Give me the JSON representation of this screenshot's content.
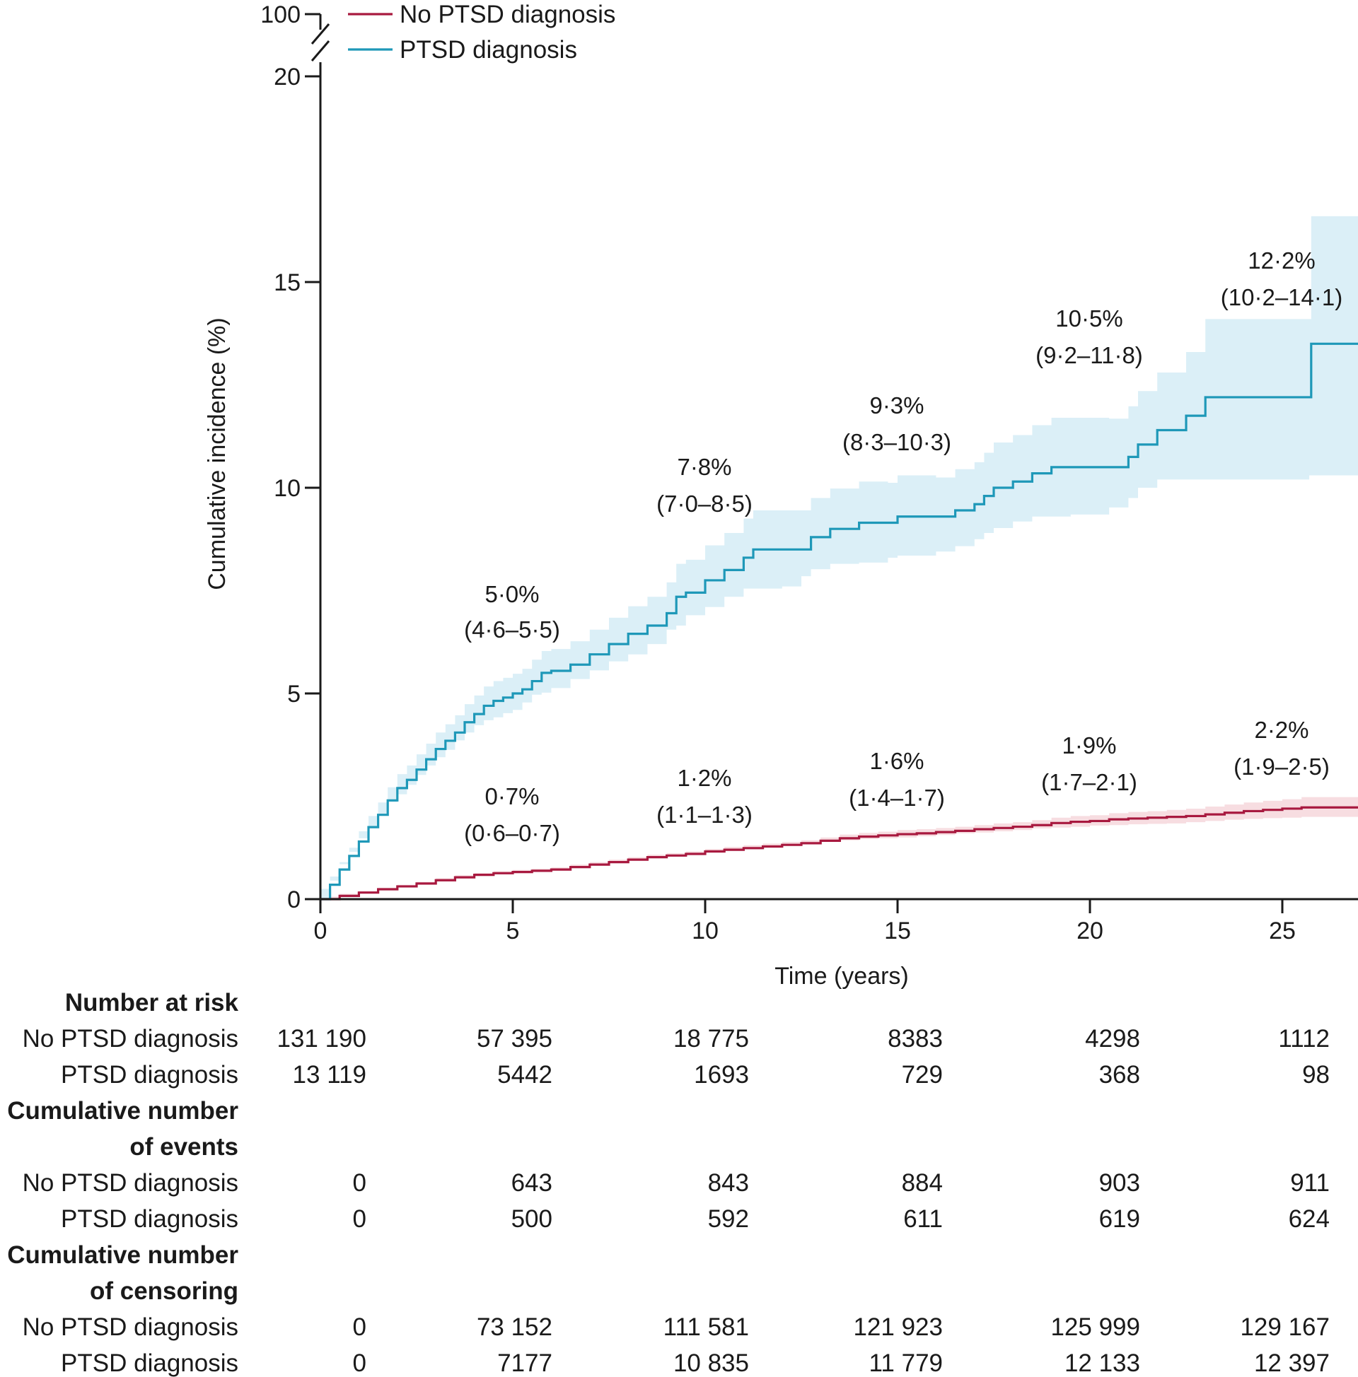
{
  "chart_data": {
    "type": "line",
    "title": "",
    "xlabel": "Time (years)",
    "ylabel": "Cumulative incidence (%)",
    "xlim": [
      0,
      27.1
    ],
    "ylim": [
      0,
      20
    ],
    "x_ticks": [
      "0",
      "5",
      "10",
      "15",
      "20",
      "25"
    ],
    "y_ticks": [
      "0",
      "5",
      "10",
      "15",
      "20"
    ],
    "y_break_label": "100",
    "grid": false,
    "legend_position": "top-left",
    "series": [
      {
        "name": "No PTSD diagnosis",
        "color": "#a8193f",
        "band_color": "#f7dde1",
        "steps": [
          [
            0,
            0
          ],
          [
            0.5,
            0.08
          ],
          [
            1,
            0.16
          ],
          [
            1.5,
            0.24
          ],
          [
            2,
            0.31
          ],
          [
            2.5,
            0.38
          ],
          [
            3,
            0.46
          ],
          [
            3.5,
            0.53
          ],
          [
            4,
            0.59
          ],
          [
            4.5,
            0.63
          ],
          [
            5,
            0.66
          ],
          [
            5.5,
            0.69
          ],
          [
            6,
            0.72
          ],
          [
            6.5,
            0.78
          ],
          [
            7,
            0.84
          ],
          [
            7.5,
            0.9
          ],
          [
            8,
            0.96
          ],
          [
            8.5,
            1.02
          ],
          [
            9,
            1.06
          ],
          [
            9.5,
            1.1
          ],
          [
            10,
            1.16
          ],
          [
            10.5,
            1.2
          ],
          [
            11,
            1.24
          ],
          [
            11.5,
            1.28
          ],
          [
            12,
            1.32
          ],
          [
            12.5,
            1.36
          ],
          [
            13,
            1.42
          ],
          [
            13.5,
            1.48
          ],
          [
            14,
            1.52
          ],
          [
            14.5,
            1.55
          ],
          [
            15,
            1.58
          ],
          [
            15.5,
            1.6
          ],
          [
            16,
            1.63
          ],
          [
            16.5,
            1.66
          ],
          [
            17,
            1.7
          ],
          [
            17.5,
            1.73
          ],
          [
            18,
            1.76
          ],
          [
            18.5,
            1.8
          ],
          [
            19,
            1.85
          ],
          [
            19.5,
            1.88
          ],
          [
            20,
            1.9
          ],
          [
            20.5,
            1.94
          ],
          [
            21,
            1.96
          ],
          [
            21.5,
            1.98
          ],
          [
            22,
            2.0
          ],
          [
            22.5,
            2.02
          ],
          [
            23,
            2.06
          ],
          [
            23.5,
            2.1
          ],
          [
            24,
            2.14
          ],
          [
            24.5,
            2.17
          ],
          [
            25,
            2.2
          ],
          [
            25.5,
            2.23
          ],
          [
            27.1,
            2.28
          ]
        ],
        "band_lower": [
          0,
          0.06,
          0.13,
          0.2,
          0.27,
          0.34,
          0.41,
          0.48,
          0.54,
          0.58,
          0.61,
          0.64,
          0.67,
          0.72,
          0.78,
          0.84,
          0.9,
          0.96,
          1.0,
          1.04,
          1.1,
          1.13,
          1.17,
          1.21,
          1.25,
          1.29,
          1.34,
          1.39,
          1.43,
          1.46,
          1.48,
          1.5,
          1.53,
          1.56,
          1.6,
          1.62,
          1.65,
          1.68,
          1.72,
          1.74,
          1.76,
          1.79,
          1.8,
          1.82,
          1.83,
          1.84,
          1.87,
          1.9,
          1.93,
          1.95,
          1.97,
          1.98,
          2.0
        ],
        "band_upper": [
          0,
          0.1,
          0.19,
          0.28,
          0.35,
          0.42,
          0.51,
          0.58,
          0.64,
          0.68,
          0.71,
          0.74,
          0.77,
          0.84,
          0.9,
          0.96,
          1.02,
          1.08,
          1.12,
          1.16,
          1.22,
          1.27,
          1.31,
          1.35,
          1.39,
          1.43,
          1.5,
          1.57,
          1.61,
          1.64,
          1.68,
          1.7,
          1.73,
          1.76,
          1.8,
          1.84,
          1.87,
          1.92,
          1.98,
          2.02,
          2.04,
          2.09,
          2.12,
          2.14,
          2.17,
          2.2,
          2.25,
          2.3,
          2.35,
          2.39,
          2.43,
          2.48,
          2.6
        ]
      },
      {
        "name": "PTSD diagnosis",
        "color": "#1e98b8",
        "band_color": "#dbeff7",
        "steps": [
          [
            0,
            0
          ],
          [
            0.25,
            0.35
          ],
          [
            0.5,
            0.72
          ],
          [
            0.75,
            1.05
          ],
          [
            1,
            1.4
          ],
          [
            1.25,
            1.75
          ],
          [
            1.5,
            2.05
          ],
          [
            1.75,
            2.4
          ],
          [
            2,
            2.7
          ],
          [
            2.25,
            2.9
          ],
          [
            2.5,
            3.15
          ],
          [
            2.75,
            3.4
          ],
          [
            3,
            3.65
          ],
          [
            3.25,
            3.85
          ],
          [
            3.5,
            4.05
          ],
          [
            3.75,
            4.3
          ],
          [
            4,
            4.5
          ],
          [
            4.25,
            4.7
          ],
          [
            4.5,
            4.82
          ],
          [
            4.75,
            4.9
          ],
          [
            5,
            5.0
          ],
          [
            5.25,
            5.1
          ],
          [
            5.5,
            5.3
          ],
          [
            5.75,
            5.5
          ],
          [
            6,
            5.55
          ],
          [
            6.5,
            5.7
          ],
          [
            7,
            5.95
          ],
          [
            7.5,
            6.2
          ],
          [
            8,
            6.45
          ],
          [
            8.5,
            6.65
          ],
          [
            9,
            6.95
          ],
          [
            9.25,
            7.35
          ],
          [
            9.5,
            7.45
          ],
          [
            10,
            7.75
          ],
          [
            10.5,
            8.0
          ],
          [
            11,
            8.3
          ],
          [
            11.25,
            8.5
          ],
          [
            12,
            8.5
          ],
          [
            12.5,
            8.5
          ],
          [
            12.75,
            8.8
          ],
          [
            13.25,
            9.0
          ],
          [
            14,
            9.15
          ],
          [
            14.75,
            9.15
          ],
          [
            15,
            9.3
          ],
          [
            16,
            9.3
          ],
          [
            16.5,
            9.45
          ],
          [
            17,
            9.6
          ],
          [
            17.25,
            9.8
          ],
          [
            17.5,
            10.0
          ],
          [
            18,
            10.15
          ],
          [
            18.5,
            10.35
          ],
          [
            19,
            10.5
          ],
          [
            19.5,
            10.5
          ],
          [
            20.5,
            10.5
          ],
          [
            21,
            10.75
          ],
          [
            21.25,
            11.05
          ],
          [
            21.75,
            11.4
          ],
          [
            22.5,
            11.75
          ],
          [
            23,
            12.2
          ],
          [
            24,
            12.2
          ],
          [
            25.7,
            12.2
          ],
          [
            25.75,
            13.5
          ],
          [
            27.1,
            13.5
          ]
        ],
        "band_lower": [
          0,
          0.25,
          0.55,
          0.85,
          1.15,
          1.48,
          1.75,
          2.08,
          2.36,
          2.55,
          2.78,
          3.02,
          3.25,
          3.45,
          3.63,
          3.86,
          4.05,
          4.23,
          4.35,
          4.42,
          4.52,
          4.6,
          4.78,
          4.97,
          5.02,
          5.13,
          5.35,
          5.56,
          5.78,
          5.95,
          6.2,
          6.55,
          6.65,
          6.9,
          7.1,
          7.35,
          7.55,
          7.55,
          7.6,
          7.85,
          8.02,
          8.15,
          8.18,
          8.3,
          8.35,
          8.45,
          8.58,
          8.75,
          8.9,
          9.02,
          9.18,
          9.3,
          9.3,
          9.35,
          9.52,
          9.75,
          10.0,
          10.2,
          10.2,
          10.2,
          10.2,
          10.3,
          10.3
        ],
        "band_upper": [
          0,
          0.45,
          0.9,
          1.25,
          1.65,
          2.02,
          2.35,
          2.72,
          3.04,
          3.25,
          3.52,
          3.78,
          4.05,
          4.25,
          4.47,
          4.74,
          4.95,
          5.17,
          5.3,
          5.38,
          5.48,
          5.6,
          5.82,
          6.03,
          6.08,
          6.27,
          6.55,
          6.84,
          7.12,
          7.35,
          7.7,
          8.15,
          8.25,
          8.6,
          8.9,
          9.25,
          9.45,
          9.45,
          9.45,
          9.75,
          9.98,
          10.15,
          10.12,
          10.3,
          10.25,
          10.45,
          10.62,
          10.85,
          11.1,
          11.28,
          11.52,
          11.7,
          11.7,
          11.68,
          11.98,
          12.35,
          12.8,
          13.3,
          14.1,
          14.1,
          14.1,
          16.6,
          16.6
        ]
      }
    ],
    "annotations": [
      {
        "series": "No PTSD diagnosis",
        "x": 5,
        "line1": "0·7%",
        "line2": "(0·6–0·7)"
      },
      {
        "series": "No PTSD diagnosis",
        "x": 10,
        "line1": "1·2%",
        "line2": "(1·1–1·3)"
      },
      {
        "series": "No PTSD diagnosis",
        "x": 15,
        "line1": "1·6%",
        "line2": "(1·4–1·7)"
      },
      {
        "series": "No PTSD diagnosis",
        "x": 20,
        "line1": "1·9%",
        "line2": "(1·7–2·1)"
      },
      {
        "series": "No PTSD diagnosis",
        "x": 25,
        "line1": "2·2%",
        "line2": "(1·9–2·5)"
      },
      {
        "series": "PTSD diagnosis",
        "x": 5,
        "line1": "5·0%",
        "line2": "(4·6–5·5)"
      },
      {
        "series": "PTSD diagnosis",
        "x": 10,
        "line1": "7·8%",
        "line2": "(7·0–8·5)"
      },
      {
        "series": "PTSD diagnosis",
        "x": 15,
        "line1": "9·3%",
        "line2": "(8·3–10·3)"
      },
      {
        "series": "PTSD diagnosis",
        "x": 20,
        "line1": "10·5%",
        "line2": "(9·2–11·8)"
      },
      {
        "series": "PTSD diagnosis",
        "x": 25,
        "line1": "12·2%",
        "line2": "(10·2–14·1)"
      }
    ],
    "table": {
      "sections": [
        {
          "header": [
            "Number at risk"
          ],
          "rows": [
            {
              "label": "No PTSD diagnosis",
              "values": [
                "131 190",
                "57 395",
                "18 775",
                "8383",
                "4298",
                "1112"
              ]
            },
            {
              "label": "PTSD diagnosis",
              "values": [
                "13 119",
                "5442",
                "1693",
                "729",
                "368",
                "98"
              ]
            }
          ]
        },
        {
          "header": [
            "Cumulative number",
            "of events"
          ],
          "rows": [
            {
              "label": "No PTSD diagnosis",
              "values": [
                "0",
                "643",
                "843",
                "884",
                "903",
                "911"
              ]
            },
            {
              "label": "PTSD diagnosis",
              "values": [
                "0",
                "500",
                "592",
                "611",
                "619",
                "624"
              ]
            }
          ]
        },
        {
          "header": [
            "Cumulative number",
            "of censoring"
          ],
          "rows": [
            {
              "label": "No PTSD diagnosis",
              "values": [
                "0",
                "73 152",
                "111 581",
                "121 923",
                "125 999",
                "129 167"
              ]
            },
            {
              "label": "PTSD diagnosis",
              "values": [
                "0",
                "7177",
                "10 835",
                "11 779",
                "12 133",
                "12 397"
              ]
            }
          ]
        }
      ]
    }
  }
}
